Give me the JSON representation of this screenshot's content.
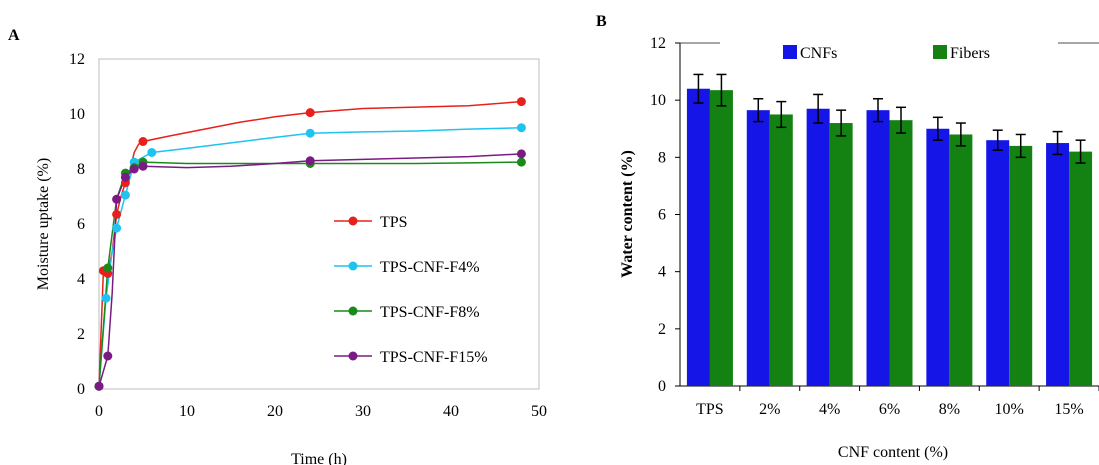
{
  "chart_data": [
    {
      "panel": "A",
      "type": "line",
      "xlabel": "Time (h)",
      "ylabel": "Moisture uptake (%)",
      "xlim": [
        0,
        50
      ],
      "ylim": [
        0,
        12
      ],
      "xticks": [
        "0",
        "10",
        "20",
        "30",
        "40",
        "50"
      ],
      "yticks": [
        "0",
        "2",
        "4",
        "6",
        "8",
        "10",
        "12"
      ],
      "grid": false,
      "legend": "right",
      "series": [
        {
          "name": "TPS",
          "color": "#e8201c",
          "marker_x": [
            0,
            0.5,
            1,
            2,
            3,
            5,
            24,
            48
          ],
          "marker_y": [
            0.1,
            4.3,
            4.2,
            6.35,
            7.5,
            9.0,
            10.05,
            10.45
          ],
          "line_x": [
            0,
            0.5,
            1,
            1.5,
            2,
            2.5,
            3,
            3.5,
            4,
            4.5,
            5,
            8,
            12,
            16,
            20,
            24,
            30,
            36,
            42,
            48
          ],
          "line_y": [
            0.1,
            4.3,
            4.2,
            5.0,
            6.35,
            7.0,
            7.5,
            7.9,
            8.6,
            8.9,
            9.0,
            9.2,
            9.45,
            9.7,
            9.9,
            10.05,
            10.2,
            10.25,
            10.3,
            10.45
          ]
        },
        {
          "name": "TPS-CNF-F4%",
          "color": "#1ec3f0",
          "marker_x": [
            0,
            0.8,
            2,
            3,
            4,
            6,
            24,
            48
          ],
          "marker_y": [
            0.1,
            3.3,
            5.85,
            7.05,
            8.25,
            8.6,
            9.3,
            9.5
          ],
          "line_x": [
            0,
            0.8,
            1.5,
            2,
            3,
            4,
            6,
            10,
            15,
            20,
            24,
            30,
            36,
            42,
            48
          ],
          "line_y": [
            0.1,
            3.3,
            5.0,
            5.85,
            7.05,
            8.25,
            8.6,
            8.75,
            8.95,
            9.15,
            9.3,
            9.35,
            9.38,
            9.45,
            9.5
          ]
        },
        {
          "name": "TPS-CNF-F8%",
          "color": "#1a8a1a",
          "marker_x": [
            0,
            1,
            3,
            4,
            5,
            24,
            48
          ],
          "marker_y": [
            0.1,
            4.4,
            7.85,
            8.05,
            8.25,
            8.2,
            8.25
          ],
          "line_x": [
            0,
            1,
            2,
            3,
            4,
            5,
            10,
            15,
            20,
            24,
            30,
            36,
            42,
            48
          ],
          "line_y": [
            0.1,
            4.4,
            6.9,
            7.85,
            8.05,
            8.25,
            8.2,
            8.2,
            8.2,
            8.2,
            8.2,
            8.2,
            8.22,
            8.25
          ]
        },
        {
          "name": "TPS-CNF-F15%",
          "color": "#7a1a84",
          "marker_x": [
            0,
            1,
            2,
            3,
            4,
            5,
            24,
            48
          ],
          "marker_y": [
            0.1,
            1.2,
            6.9,
            7.7,
            8.0,
            8.1,
            8.3,
            8.55
          ],
          "line_x": [
            0,
            1,
            1.5,
            2,
            3,
            4,
            5,
            10,
            15,
            20,
            24,
            30,
            36,
            42,
            48
          ],
          "line_y": [
            0.1,
            1.2,
            3.5,
            6.9,
            7.7,
            8.0,
            8.1,
            8.05,
            8.1,
            8.2,
            8.3,
            8.35,
            8.4,
            8.45,
            8.55
          ]
        }
      ]
    },
    {
      "panel": "B",
      "type": "bar",
      "xlabel": "CNF content (%)",
      "ylabel": "Water content (%)",
      "categories": [
        "TPS",
        "2%",
        "4%",
        "6%",
        "8%",
        "10%",
        "15%"
      ],
      "ylim": [
        0,
        12
      ],
      "yticks": [
        "0",
        "2",
        "4",
        "6",
        "8",
        "10",
        "12"
      ],
      "grid": false,
      "legend": "top",
      "series": [
        {
          "name": "CNFs",
          "color": "#1515e8",
          "values": [
            10.4,
            9.65,
            9.7,
            9.65,
            9.0,
            8.6,
            8.5
          ],
          "errors": [
            0.5,
            0.4,
            0.5,
            0.4,
            0.4,
            0.35,
            0.4
          ]
        },
        {
          "name": "Fibers",
          "color": "#138213",
          "values": [
            10.35,
            9.5,
            9.2,
            9.3,
            8.8,
            8.4,
            8.2
          ],
          "errors": [
            0.55,
            0.45,
            0.45,
            0.45,
            0.4,
            0.4,
            0.4
          ]
        }
      ]
    }
  ]
}
